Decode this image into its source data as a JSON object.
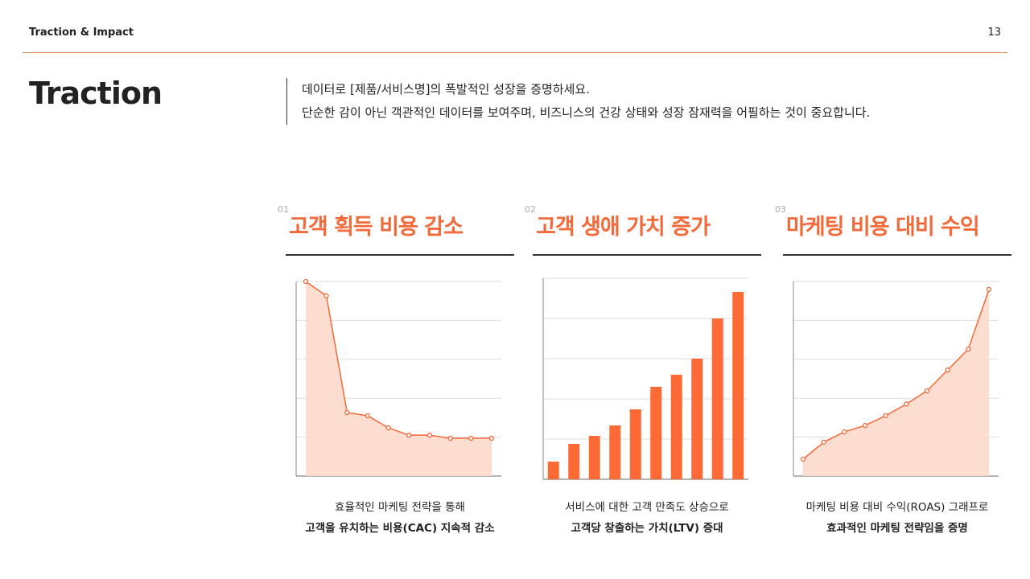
{
  "header": {
    "section": "Traction & Impact",
    "page": "13"
  },
  "title": "Traction",
  "description": [
    "데이터로 [제품/서비스명]의 폭발적인 성장을 증명하세요.",
    "단순한 감이 아닌 객관적인 데이터를 보여주며, 비즈니스의 건강 상태와 성장 잠재력을 어필하는 것이 중요합니다."
  ],
  "colors": {
    "accent": "#f26a3a",
    "area": "#fcd9cb",
    "bar": "#fe6a35"
  },
  "cards": [
    {
      "num": "01",
      "title": "고객 획득 비용 감소",
      "caption1": "효율적인 마케팅 전략을 통해",
      "caption2": "고객을 유치하는 비용(CAC) 지속적 감소"
    },
    {
      "num": "02",
      "title": "고객 생애 가치 증가",
      "caption1": "서비스에 대한 고객 만족도 상승으로",
      "caption2": "고객당 창출하는 가치(LTV) 증대"
    },
    {
      "num": "03",
      "title": "마케팅 비용 대비 수익",
      "caption1": "마케팅 비용 대비 수익(ROAS) 그래프로",
      "caption2": "효과적인 마케팅 전략임을 증명"
    }
  ],
  "chart_data": [
    {
      "type": "area",
      "ylim": [
        0,
        100
      ],
      "grid": true,
      "values": [
        100,
        92.6,
        32.6,
        31,
        24.8,
        21,
        21,
        19.4,
        19.4,
        19.4
      ]
    },
    {
      "type": "bar",
      "ylim": [
        0,
        100
      ],
      "grid": true,
      "values": [
        8.8,
        17.6,
        21.6,
        26.8,
        34.8,
        46,
        52,
        60,
        80,
        93.2
      ]
    },
    {
      "type": "area",
      "ylim": [
        0,
        100
      ],
      "grid": true,
      "values": [
        8.7,
        17.4,
        22.7,
        26,
        31,
        37,
        43.8,
        54.5,
        65.3,
        95.9
      ]
    }
  ]
}
